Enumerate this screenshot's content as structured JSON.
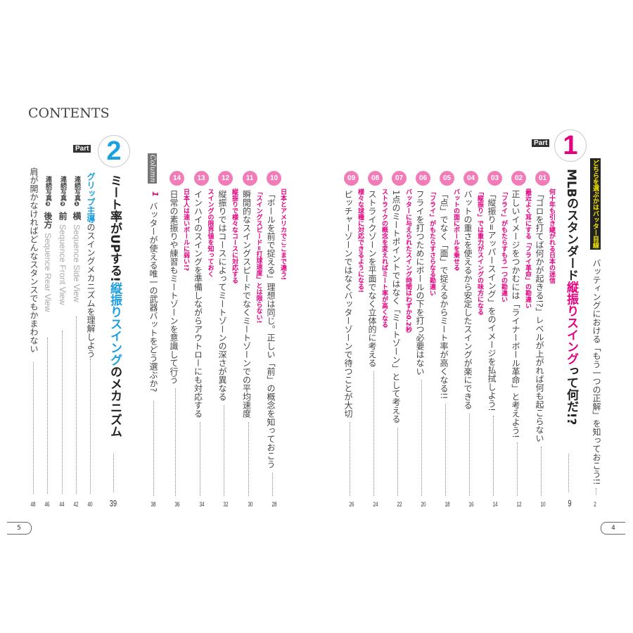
{
  "contents_title": "CONTENTS",
  "page_tabs": {
    "left": "5",
    "right": "4"
  },
  "intro": {
    "label": "どちらを選ぶかはバッター目線",
    "text": "バッティングにおける「もう一つの正解」を知っておこう!!",
    "page": "2"
  },
  "part1": {
    "badge": "Part",
    "number": "1",
    "title": [
      {
        "t": "MLBのスタンダード",
        "c": "#222"
      },
      {
        "t": "縦振りスイング",
        "c": "#e4007f"
      },
      {
        "t": "って何だ!?",
        "c": "#222"
      }
    ],
    "page": "9",
    "color": "#e4007f"
  },
  "part1_entries": [
    {
      "num": "01",
      "sub": "何十年も引き継がれる日本の迷信",
      "text": "「ゴロを打てば何かが起きる!?」レベルが上がれば何も起こらない",
      "page": "10"
    },
    {
      "num": "02",
      "sub": "最近よく耳にする「フライ革命」の勘違い",
      "text": "正しいイメージをつかむには「ライナーボール革命」と考えよう!",
      "page": "12"
    },
    {
      "num": "03",
      "sub": "「フライ」がもたらすもう一つの勘違い",
      "text": "「縦振り=アッパースイング」をのイメージを払拭しよう!",
      "page": "14"
    },
    {
      "num": "04",
      "sub": "「縦振り」では重力がスイングの味方になる",
      "text": "バットの重さを使えるから安定したスイングが楽にできる",
      "page": "16"
    },
    {
      "num": "05",
      "sub": "バットの面にボールを乗せる",
      "text": "「点」でなく「面」で捉えるからミート率が高くなる!!",
      "page": "18"
    },
    {
      "num": "06",
      "sub": "「フライ」がもたらすさらなる勘違い",
      "text": "フライを打つためにボールの下を打つ必要はない",
      "page": "20"
    },
    {
      "num": "07",
      "sub": "バッターに与えられたスイング時間はわずか0.2秒",
      "text": "1点のミートポイントではなく「ミートゾーン」として考える",
      "page": "22"
    },
    {
      "num": "08",
      "sub": "ストライクの概念を変えればミート率が高くなる",
      "text": "ストライクゾーンを平面でなく立体的に考える",
      "page": "24"
    },
    {
      "num": "09",
      "sub": "様々な球種に対応できるようになる!",
      "text": "ピッチャーゾーンではなくバッターゾーンで待つことが大切",
      "page": "26"
    }
  ],
  "part1_left_entries": [
    {
      "num": "10",
      "sub": "日本とアメリカでここまで違う!",
      "text": "「ボールを前で捉える」理想は同じ。正しい「前」の概念を知っておこう",
      "page": "28"
    },
    {
      "num": "11",
      "sub": "「スイングスピード=打球速度」とは限らない!",
      "text": "瞬間的なスイングスピードでなくミートゾーンでの平均速度",
      "page": "30"
    },
    {
      "num": "12",
      "sub": "縦振りで様々なコースに対応する",
      "text": "縦振りではコースによってミートゾーンの深さが異なる",
      "page": "32"
    },
    {
      "num": "13",
      "sub": "スイングの限界値を知っておく",
      "text": "インハイのスイングを準備しながらアウトローにも対応する",
      "page": "34"
    },
    {
      "num": "14",
      "sub": "日本人は速いボールに弱い!?",
      "text": "日常の素振りや練習もミートゾーンを意識して行う",
      "page": "36"
    }
  ],
  "column": {
    "label": "Column",
    "num": "1",
    "text": "バッターが使える唯一の武器バットをどう選ぶか?",
    "page": "38"
  },
  "part2": {
    "badge": "Part",
    "number": "2",
    "title": [
      {
        "t": "ミート率がUPする!",
        "c": "#222"
      },
      {
        "t": "縦振りスイング",
        "c": "#1ea0e0"
      },
      {
        "t": "のメカニズム",
        "c": "#222"
      }
    ],
    "page": "39",
    "color": "#1ea0e0"
  },
  "part2_entries": [
    {
      "pre": "",
      "hl": "グリップ主導",
      "text": "のスイングメカニズムを理解しよう",
      "page": "40"
    },
    {
      "pre": "連続写真❶",
      "hl": "横",
      "text": "Sequence Side View",
      "page": "42"
    },
    {
      "pre": "連続写真❷",
      "hl": "前",
      "text": "Sequence Front View",
      "page": "44"
    },
    {
      "pre": "連続写真❸",
      "hl": "後方",
      "text": "Sequence Rear View",
      "page": "46"
    },
    {
      "pre": "",
      "hl": "",
      "text": "肩が開かなければどんなスタンスでもかまわない",
      "page": "48"
    }
  ]
}
